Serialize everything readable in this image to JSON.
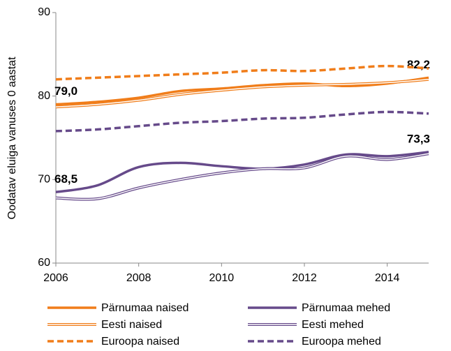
{
  "chart_data": {
    "type": "line",
    "y_label": "Oodatav eluiga vanuses 0 aastat",
    "x": [
      2006,
      2007,
      2008,
      2009,
      2010,
      2011,
      2012,
      2013,
      2014,
      2015
    ],
    "xlim": [
      2006,
      2015
    ],
    "xticks": [
      2006,
      2008,
      2010,
      2012,
      2014
    ],
    "ylim": [
      60,
      90
    ],
    "yticks": [
      60,
      70,
      80,
      90
    ],
    "grid": false,
    "legend": "bottom",
    "series": [
      {
        "name": "Pärnumaa naised",
        "color": "#f07d1a",
        "style": "solid",
        "values": [
          79.0,
          79.3,
          79.8,
          80.6,
          80.9,
          81.3,
          81.5,
          81.2,
          81.5,
          82.2
        ],
        "value_labels": [
          "79,0",
          null,
          null,
          null,
          null,
          null,
          null,
          null,
          null,
          "82,2"
        ]
      },
      {
        "name": "Pärnumaa mehed",
        "color": "#664a8a",
        "style": "solid",
        "values": [
          68.5,
          69.3,
          71.5,
          72.0,
          71.6,
          71.3,
          71.8,
          73.0,
          72.8,
          73.3
        ],
        "value_labels": [
          "68,5",
          null,
          null,
          null,
          null,
          null,
          null,
          null,
          null,
          "73,3"
        ]
      },
      {
        "name": "Eesti naised",
        "color": "#f07d1a",
        "style": "double",
        "values": [
          78.7,
          79.0,
          79.5,
          80.2,
          80.7,
          81.1,
          81.3,
          81.4,
          81.6,
          82.0
        ]
      },
      {
        "name": "Eesti mehed",
        "color": "#664a8a",
        "style": "double",
        "values": [
          67.8,
          67.7,
          69.0,
          70.0,
          70.8,
          71.3,
          71.4,
          72.8,
          72.4,
          73.1
        ]
      },
      {
        "name": "Euroopa naised",
        "color": "#f07d1a",
        "style": "dashed",
        "values": [
          82.0,
          82.2,
          82.4,
          82.6,
          82.8,
          83.1,
          83.0,
          83.3,
          83.6,
          83.3
        ]
      },
      {
        "name": "Euroopa mehed",
        "color": "#664a8a",
        "style": "dashed",
        "values": [
          75.8,
          76.0,
          76.4,
          76.8,
          77.0,
          77.3,
          77.4,
          77.8,
          78.1,
          77.9
        ]
      }
    ]
  }
}
